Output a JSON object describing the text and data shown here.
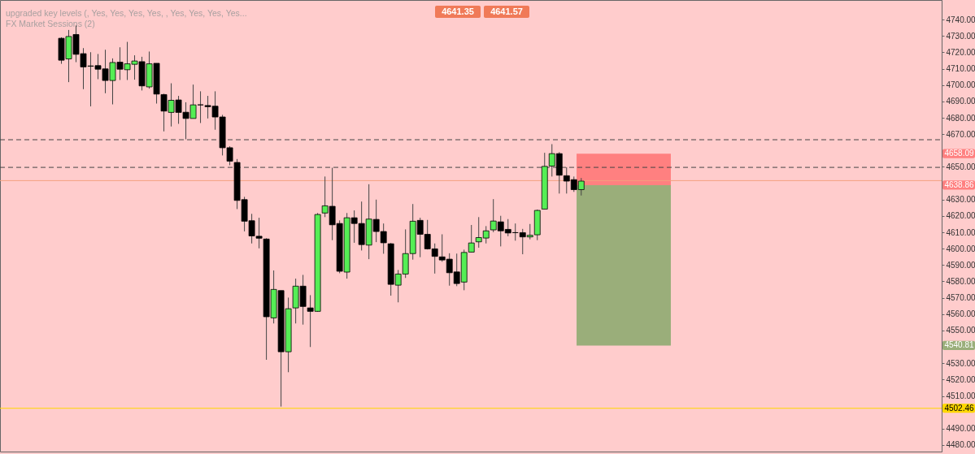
{
  "chart_data": {
    "type": "candlestick",
    "categories": [
      null,
      null,
      null,
      null,
      null,
      null,
      null,
      null,
      null,
      null,
      null,
      null,
      null,
      null,
      null,
      null,
      null,
      null,
      null,
      null,
      null,
      null,
      null,
      null,
      null,
      null,
      null,
      null,
      null,
      null,
      null,
      null,
      null,
      null,
      null,
      null,
      null,
      null,
      null,
      null,
      null,
      null,
      null,
      null,
      null,
      null,
      null,
      null,
      null,
      null,
      null,
      null,
      null,
      null,
      null,
      null,
      null,
      null,
      null,
      null,
      null,
      null,
      null,
      null,
      null,
      null,
      null,
      null,
      null,
      null,
      null,
      null,
      null,
      null,
      null,
      null,
      null,
      null,
      null,
      null,
      null,
      null,
      null,
      null,
      null,
      null,
      null,
      null,
      null,
      null,
      null,
      null,
      null,
      null,
      null,
      null,
      null,
      null,
      null,
      null,
      null,
      null,
      null,
      null,
      null,
      null,
      null,
      null,
      null,
      null,
      null,
      null,
      null,
      null,
      null,
      null,
      null,
      null,
      null,
      null,
      null,
      null,
      null,
      null,
      null,
      null,
      null,
      null
    ],
    "ohlc": [
      null,
      null,
      null,
      null,
      null,
      null,
      null,
      null,
      [
        4728.6,
        4729.2,
        4713,
        4715.2
      ],
      [
        4716.0,
        4733.7,
        4701.8,
        4729.7
      ],
      [
        4730.9,
        4736.4,
        4714.0,
        4718.8
      ],
      [
        4719.2,
        4722.6,
        4697.5,
        4711.1
      ],
      [
        4711.5,
        4720.1,
        4687,
        4711.7
      ],
      [
        4711.9,
        4719,
        4703.6,
        4709.7
      ],
      [
        4709.9,
        4721.6,
        4695,
        4702.8
      ],
      [
        4702.8,
        4716.3,
        4688.2,
        4713.8
      ],
      [
        4714.0,
        4723.1,
        4703.1,
        4709.7
      ],
      [
        4709.4,
        4726.4,
        4703.1,
        4713.0
      ],
      [
        4712.7,
        4718.2,
        4703.3,
        4714.7
      ],
      [
        4714.3,
        4717.3,
        4696.7,
        4699.5
      ],
      [
        4698.9,
        4720.5,
        4697.8,
        4713.0
      ],
      [
        4713.3,
        4713.3,
        4688.7,
        4694.5
      ],
      [
        4694.2,
        4694.7,
        4671.7,
        4684.1
      ],
      [
        4683.3,
        4701.1,
        4674.7,
        4690.7
      ],
      [
        4690.9,
        4693.4,
        4676.3,
        4683.3
      ],
      [
        4683.4,
        4689.5,
        4666.9,
        4679.6
      ],
      [
        4679.6,
        4700.3,
        4679.6,
        4687.9
      ],
      [
        4687.9,
        4696.2,
        4676.8,
        4687.9
      ],
      [
        4687.5,
        4693.4,
        4679.6,
        4686.8
      ],
      [
        4687.1,
        4696.2,
        4672.7,
        4680.5
      ],
      [
        4680.5,
        4681.8,
        4657.0,
        4661.7
      ],
      [
        4661.7,
        4662.6,
        4651.0,
        4653.5
      ],
      [
        4652.7,
        4654.8,
        4624.2,
        4629.5
      ],
      [
        4630.0,
        4631.7,
        4610.6,
        4616.8
      ],
      [
        4617.1,
        4621.3,
        4603.2,
        4607.8
      ],
      [
        4607.6,
        4618.9,
        4600.2,
        4606.4
      ],
      [
        4605.9,
        4606.4,
        4532.1,
        4558.4
      ],
      [
        4557.7,
        4586.7,
        4554.3,
        4575.1
      ],
      [
        4574.4,
        4574.4,
        4503.5,
        4537.0
      ],
      [
        4537.0,
        4570.1,
        4524.5,
        4563.3
      ],
      [
        4563.8,
        4581.7,
        4554.3,
        4577.1
      ],
      [
        4577.1,
        4584.0,
        4553.6,
        4564.7
      ],
      [
        4563.8,
        4571.6,
        4539.9,
        4561.7
      ],
      [
        4561.7,
        4621.8,
        4561.4,
        4620.9
      ],
      [
        4621.8,
        4644.1,
        4619.3,
        4626.2
      ],
      [
        4625.9,
        4649.5,
        4605.2,
        4614.6
      ],
      [
        4615.4,
        4617.3,
        4585.0,
        4586.2
      ],
      [
        4585.7,
        4621.8,
        4581.7,
        4618.9
      ],
      [
        4618.9,
        4623.4,
        4603.6,
        4615.4
      ],
      [
        4615.4,
        4628.8,
        4598.9,
        4602.5
      ],
      [
        4602.2,
        4639.4,
        4593.6,
        4618.1
      ],
      [
        4617.9,
        4630.0,
        4604.0,
        4610.5
      ],
      [
        4610.5,
        4615.4,
        4596.9,
        4603.6
      ],
      [
        4603.0,
        4603.5,
        4571.3,
        4578.2
      ],
      [
        4577.7,
        4587.0,
        4567.2,
        4584.5
      ],
      [
        4584.5,
        4611.8,
        4582.1,
        4597.0
      ],
      [
        4597.0,
        4627.3,
        4593.3,
        4616.8
      ],
      [
        4617.3,
        4618.9,
        4594.8,
        4608.8
      ],
      [
        4608.8,
        4617.6,
        4599.5,
        4599.9
      ],
      [
        4599.9,
        4603.2,
        4584.8,
        4595.3
      ],
      [
        4595.0,
        4608.8,
        4592.0,
        4593.1
      ],
      [
        4593.6,
        4597.2,
        4577.4,
        4585.3
      ],
      [
        4585.8,
        4597.0,
        4577.1,
        4578.7
      ],
      [
        4579.6,
        4599.4,
        4574.6,
        4597.7
      ],
      [
        4597.9,
        4614.5,
        4597.9,
        4603.5
      ],
      [
        4604.2,
        4619.3,
        4600.6,
        4606.8
      ],
      [
        4606.5,
        4613.8,
        4603.2,
        4610.9
      ],
      [
        4611.5,
        4630.3,
        4610.1,
        4616.9
      ],
      [
        4616.4,
        4620.1,
        4601.4,
        4610.9
      ],
      [
        4611.8,
        4618.1,
        4607.6,
        4609.6
      ],
      [
        4609.8,
        4615.4,
        4604.9,
        4609.8
      ],
      [
        4609.8,
        4612.1,
        4596.6,
        4607.2
      ],
      [
        4607.2,
        4615.1,
        4605.7,
        4608.2
      ],
      [
        4608.5,
        4623.9,
        4605.2,
        4623.4
      ],
      [
        4624.2,
        4658.6,
        4624.2,
        4650.3
      ],
      [
        4650.5,
        4663.9,
        4644.1,
        4658.1
      ],
      [
        4658.1,
        4659.0,
        4633.7,
        4644.9
      ],
      [
        4644.6,
        4649.8,
        4633.7,
        4641.3
      ],
      [
        4642.2,
        4644.1,
        4634.7,
        4636.1
      ],
      [
        4636.1,
        4643.2,
        4632.5,
        4641.3
      ],
      null,
      null,
      null,
      null,
      null,
      null,
      null,
      null,
      null,
      null,
      null,
      null,
      null,
      null,
      null,
      null,
      null,
      null,
      null,
      null,
      null,
      null,
      null,
      null,
      null,
      null,
      null,
      null,
      null,
      null,
      null,
      null,
      null,
      null,
      null,
      null,
      null,
      null,
      null,
      null,
      null,
      null,
      null,
      null,
      null,
      null,
      null,
      null
    ],
    "colors": [
      null,
      null,
      null,
      null,
      null,
      null,
      null,
      null,
      "#000000",
      "#55ee55",
      "#000000",
      "#000000",
      "#55ee55",
      "#000000",
      "#000000",
      "#55ee55",
      "#000000",
      "#55ee55",
      "#55ee55",
      "#000000",
      "#55ee55",
      "#000000",
      "#000000",
      "#55ee55",
      "#000000",
      "#000000",
      "#55ee55",
      "#000000",
      "#000000",
      "#000000",
      "#000000",
      "#000000",
      "#000000",
      "#000000",
      "#000000",
      "#000000",
      "#000000",
      "#55ee55",
      "#000000",
      "#55ee55",
      "#55ee55",
      "#000000",
      "#000000",
      "#55ee55",
      "#55ee55",
      "#000000",
      "#000000",
      "#55ee55",
      "#000000",
      "#000000",
      "#55ee55",
      "#000000",
      "#000000",
      "#000000",
      "#55ee55",
      "#55ee55",
      "#55ee55",
      "#000000",
      "#000000",
      "#000000",
      "#000000",
      "#000000",
      "#000000",
      "#55ee55",
      "#55ee55",
      "#55ee55",
      "#55ee55",
      "#55ee55",
      "#000000",
      "#000000",
      "#000000",
      "#000000",
      "#55ee55",
      "#55ee55",
      "#55ee55",
      "#55ee55",
      "#000000",
      "#000000",
      "#000000",
      "#55ee55",
      null,
      null,
      null,
      null,
      null,
      null,
      null,
      null,
      null,
      null,
      null,
      null,
      null,
      null,
      null,
      null,
      null,
      null,
      null,
      null,
      null,
      null,
      null,
      null,
      null,
      null,
      null,
      null,
      null,
      null,
      null,
      null,
      null,
      null,
      null,
      null,
      null,
      null,
      null,
      null,
      null,
      null,
      null,
      null,
      null,
      null,
      null,
      null
    ],
    "ylim": [
      4476,
      4752
    ],
    "yticks": [
      {
        "value": 4480,
        "label": "4480.00"
      },
      {
        "value": 4490,
        "label": "4490.00"
      },
      {
        "value": 4510,
        "label": "4510.00"
      },
      {
        "value": 4520,
        "label": "4520.00"
      },
      {
        "value": 4530,
        "label": "4530.00"
      },
      {
        "value": 4550,
        "label": "4550.00"
      },
      {
        "value": 4560,
        "label": "4560.00"
      },
      {
        "value": 4570,
        "label": "4570.00"
      },
      {
        "value": 4580,
        "label": "4580.00"
      },
      {
        "value": 4590,
        "label": "4590.00"
      },
      {
        "value": 4600,
        "label": "4600.00"
      },
      {
        "value": 4610,
        "label": "4610.00"
      },
      {
        "value": 4620,
        "label": "4620.00"
      },
      {
        "value": 4630,
        "label": "4630.00"
      },
      {
        "value": 4650,
        "label": "4650.00"
      },
      {
        "value": 4670,
        "label": "4670.00"
      },
      {
        "value": 4680,
        "label": "4680.00"
      },
      {
        "value": 4690,
        "label": "4690.00"
      },
      {
        "value": 4700,
        "label": "4700.00"
      },
      {
        "value": 4710,
        "label": "4710.00"
      },
      {
        "value": 4720,
        "label": "4720.00"
      },
      {
        "value": 4730,
        "label": "4730.00"
      },
      {
        "value": 4740,
        "label": "4740.00"
      }
    ],
    "grid": false,
    "tick_labels": "y",
    "bands": [
      {
        "axis": "y",
        "from": 4638.86,
        "to": 4658.09,
        "color": "#ff8080"
      },
      {
        "axis": "y",
        "from": 4540.81,
        "to": 4638.86,
        "color": "#9aae7a"
      }
    ],
    "ref_lines": [
      {
        "axis": "y",
        "value": 4666.6,
        "line_style": "dashed",
        "color": "#444444"
      },
      {
        "axis": "y",
        "value": 4649.7,
        "line_style": "dashed",
        "color": "#444444"
      },
      {
        "axis": "y",
        "value": 4641.6,
        "line_style": "solid",
        "color": "#f4a080"
      },
      {
        "axis": "y",
        "value": 4502.46,
        "label": "4502.46",
        "line_style": "solid",
        "color": "#ffd700"
      }
    ],
    "annotations": [
      "upgraded key levels (, Yes, Yes, Yes, Yes, , Yes, Yes, Yes, Yes...",
      "FX Market Sessions (2)",
      "4641.35",
      "4641.57",
      "4658.09",
      "4638.86",
      "4540.81"
    ]
  }
}
